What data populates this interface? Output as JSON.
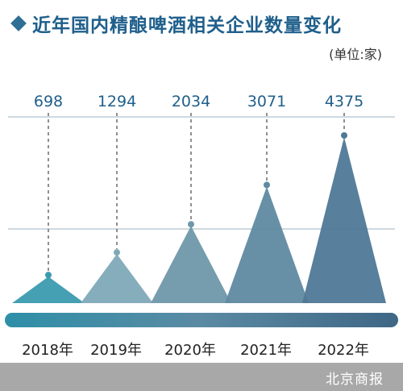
{
  "title": "近年国内精酿啤酒相关企业数量变化",
  "unit": "(单位:家)",
  "source": "北京商报",
  "colors": {
    "title": "#1f5f8b",
    "mountain_2018": "#3b9bb0",
    "mountain_2019": "#7fa9b8",
    "mountain_2020": "#6f98aa",
    "mountain_2021": "#5f8aa2",
    "mountain_2022": "#4f7896"
  },
  "chart_data": {
    "type": "area",
    "categories": [
      "2018年",
      "2019年",
      "2020年",
      "2021年",
      "2022年"
    ],
    "values": [
      698,
      1294,
      2034,
      3071,
      4375
    ],
    "data_labels": [
      "698",
      "1294",
      "2034",
      "3071",
      "4375"
    ],
    "ylim": [
      0,
      4700
    ],
    "grid": true,
    "legend": "none"
  }
}
